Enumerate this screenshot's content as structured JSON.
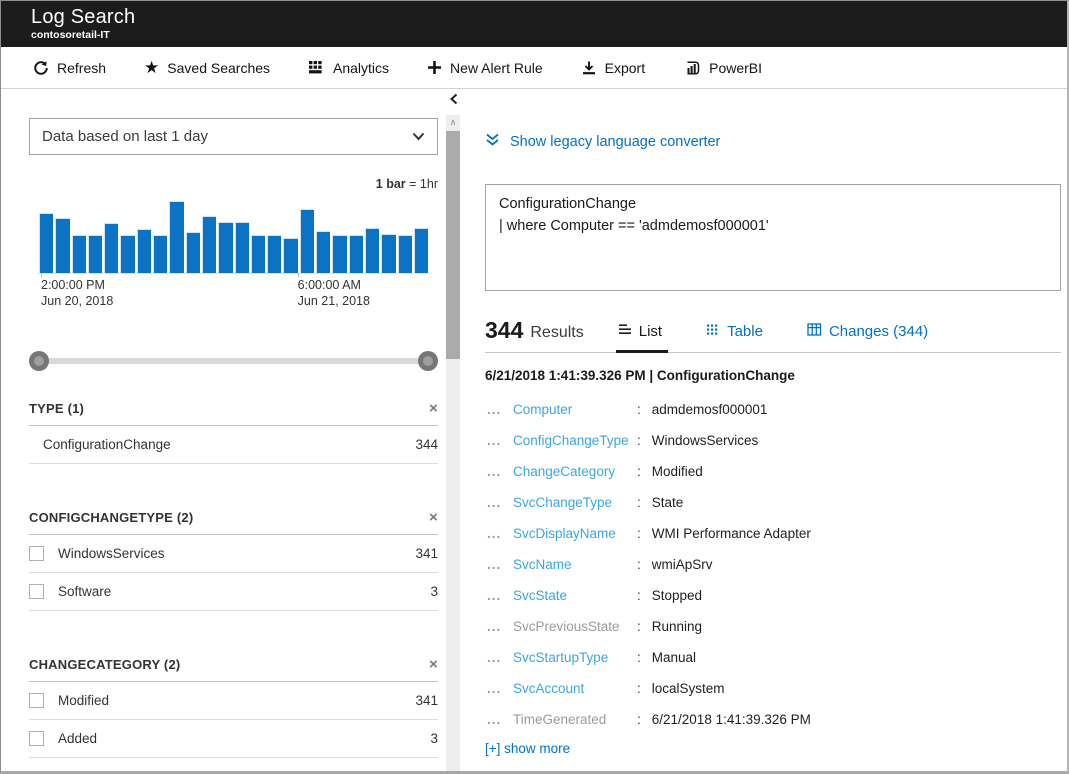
{
  "header": {
    "title": "Log Search",
    "subtitle": "contosoretail-IT"
  },
  "toolbar": {
    "items": [
      {
        "label": "Refresh",
        "icon": "refresh-icon"
      },
      {
        "label": "Saved Searches",
        "icon": "star-icon"
      },
      {
        "label": "Analytics",
        "icon": "analytics-icon"
      },
      {
        "label": "New Alert Rule",
        "icon": "plus-icon"
      },
      {
        "label": "Export",
        "icon": "download-icon"
      },
      {
        "label": "PowerBI",
        "icon": "powerbi-icon"
      }
    ]
  },
  "left_panel": {
    "time_selector": "Data based on last 1 day",
    "legend_bold": "1 bar",
    "legend_rest": " = 1hr",
    "facets": [
      {
        "title": "TYPE (1)",
        "close": "×",
        "items": [
          {
            "label": "ConfigurationChange",
            "count": "344"
          }
        ]
      },
      {
        "title": "CONFIGCHANGETYPE (2)",
        "close": "×",
        "items": [
          {
            "label": "WindowsServices",
            "count": "341"
          },
          {
            "label": "Software",
            "count": "3"
          }
        ]
      },
      {
        "title": "CHANGECATEGORY (2)",
        "close": "×",
        "items": [
          {
            "label": "Modified",
            "count": "341"
          },
          {
            "label": "Added",
            "count": "3"
          }
        ]
      }
    ]
  },
  "chart_data": {
    "type": "bar",
    "title": "",
    "legend": "1 bar = 1hr",
    "bar_color": "#0b72c4",
    "bar_interval": "1hr",
    "num_bars": 24,
    "values_pct": [
      84,
      76,
      53,
      53,
      69,
      53,
      61,
      53,
      100,
      57,
      79,
      71,
      71,
      53,
      53,
      48,
      89,
      59,
      53,
      53,
      63,
      54,
      53,
      63
    ],
    "x_ticks": [
      {
        "time": "2:00:00 PM",
        "date": "Jun 20, 2018",
        "bar_index": 0
      },
      {
        "time": "6:00:00 AM",
        "date": "Jun 21, 2018",
        "bar_index": 16
      }
    ],
    "ylim": [
      0,
      100
    ],
    "grid": false,
    "legend_position": "top-right"
  },
  "right_panel": {
    "legacy_link": "Show legacy language converter",
    "query_line1": "ConfigurationChange",
    "query_line2": "| where Computer == 'admdemosf000001'",
    "results": {
      "count": "344",
      "word": "Results"
    },
    "tabs": [
      {
        "label": "List",
        "active": true
      },
      {
        "label": "Table",
        "active": false
      },
      {
        "label": "Changes (344)",
        "active": false
      }
    ],
    "record": {
      "header": "6/21/2018 1:41:39.326 PM | ConfigurationChange",
      "ellipsis": "...",
      "separator": ":",
      "fields": [
        {
          "name": "Computer",
          "value": "admdemosf000001"
        },
        {
          "name": "ConfigChangeType",
          "value": "WindowsServices"
        },
        {
          "name": "ChangeCategory",
          "value": "Modified"
        },
        {
          "name": "SvcChangeType",
          "value": "State"
        },
        {
          "name": "SvcDisplayName",
          "value": "WMI Performance Adapter"
        },
        {
          "name": "SvcName",
          "value": "wmiApSrv"
        },
        {
          "name": "SvcState",
          "value": "Stopped"
        },
        {
          "name": "SvcPreviousState",
          "value": "Running"
        },
        {
          "name": "SvcStartupType",
          "value": "Manual"
        },
        {
          "name": "SvcAccount",
          "value": "localSystem"
        },
        {
          "name": "TimeGenerated",
          "value": "6/21/2018 1:41:39.326 PM"
        }
      ],
      "show_more": "[+] show more"
    }
  }
}
